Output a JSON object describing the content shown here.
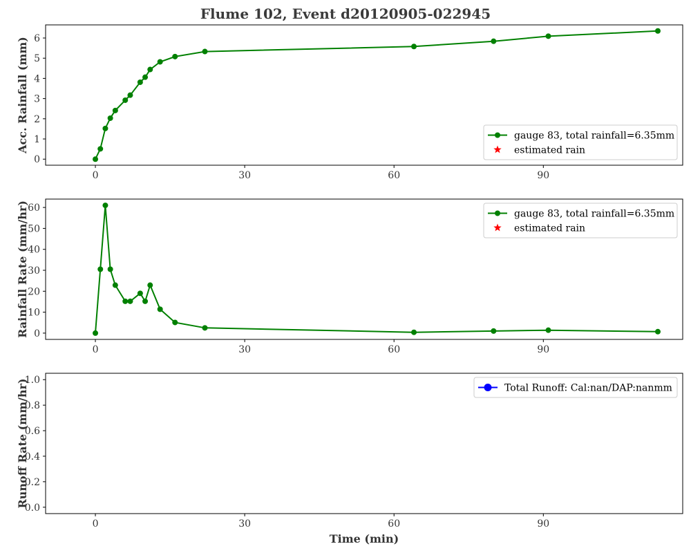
{
  "figure": {
    "title": "Flume 102, Event d20120905-022945"
  },
  "colors": {
    "rain": "#008000",
    "estimated": "#ff0000",
    "runoff": "#0000ff",
    "text": "#333333"
  },
  "chart_data": [
    {
      "type": "line",
      "ylabel": "Acc. Rainfall (mm)",
      "xlabel": "",
      "xlim": [
        -10,
        118
      ],
      "ylim": [
        -0.3,
        6.65
      ],
      "xticks": [
        0,
        30,
        60,
        90
      ],
      "yticks": [
        0,
        1,
        2,
        3,
        4,
        5,
        6
      ],
      "legend_position": "lower right",
      "legend": [
        {
          "label": "gauge 83, total rainfall=6.35mm",
          "marker": "circle-line",
          "color": "#008000"
        },
        {
          "label": "estimated rain",
          "marker": "star",
          "color": "#ff0000"
        }
      ],
      "series": [
        {
          "name": "gauge 83, total rainfall=6.35mm",
          "x": [
            0,
            1,
            2,
            3,
            4,
            6,
            7,
            9,
            10,
            11,
            13,
            16,
            22,
            64,
            80,
            91,
            113
          ],
          "y": [
            0,
            0.51,
            1.52,
            2.03,
            2.41,
            2.92,
            3.17,
            3.81,
            4.06,
            4.44,
            4.82,
            5.08,
            5.33,
            5.58,
            5.84,
            6.09,
            6.35
          ]
        },
        {
          "name": "estimated rain",
          "x": [],
          "y": []
        }
      ]
    },
    {
      "type": "line",
      "ylabel": "Rainfall Rate (mm/hr)",
      "xlabel": "",
      "xlim": [
        -10,
        118
      ],
      "ylim": [
        -3,
        64
      ],
      "xticks": [
        0,
        30,
        60,
        90
      ],
      "yticks": [
        0,
        10,
        20,
        30,
        40,
        50,
        60
      ],
      "legend_position": "upper right",
      "legend": [
        {
          "label": "gauge 83, total rainfall=6.35mm",
          "marker": "circle-line",
          "color": "#008000"
        },
        {
          "label": "estimated rain",
          "marker": "star",
          "color": "#ff0000"
        }
      ],
      "series": [
        {
          "name": "gauge 83, total rainfall=6.35mm",
          "x": [
            0,
            1,
            2,
            3,
            4,
            6,
            7,
            9,
            10,
            11,
            13,
            16,
            22,
            64,
            80,
            91,
            113
          ],
          "y": [
            0,
            30.5,
            61,
            30.5,
            22.9,
            15.2,
            15.2,
            19,
            15.2,
            22.9,
            11.4,
            5.1,
            2.5,
            0.4,
            1.0,
            1.4,
            0.7
          ]
        },
        {
          "name": "estimated rain",
          "x": [],
          "y": []
        }
      ]
    },
    {
      "type": "line",
      "ylabel": "Runoff Rate (mm/hr)",
      "xlabel": "Time (min)",
      "xlim": [
        -10,
        118
      ],
      "ylim": [
        -0.05,
        1.05
      ],
      "xticks": [
        0,
        30,
        60,
        90
      ],
      "yticks": [
        0.0,
        0.2,
        0.4,
        0.6,
        0.8,
        1.0
      ],
      "ytick_format": "1dp",
      "legend_position": "upper right",
      "legend": [
        {
          "label": "Total Runoff: Cal:nan/DAP:nanmm",
          "marker": "circle-line",
          "color": "#0000ff"
        }
      ],
      "series": [
        {
          "name": "Total Runoff: Cal:nan/DAP:nanmm",
          "x": [],
          "y": []
        }
      ]
    }
  ]
}
